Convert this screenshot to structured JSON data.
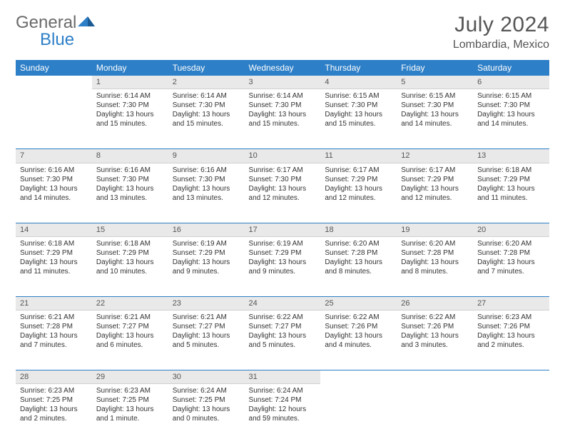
{
  "brand": {
    "part1": "General",
    "part2": "Blue"
  },
  "title": "July 2024",
  "location": "Lombardia, Mexico",
  "colors": {
    "header_bg": "#2d7fc7",
    "daynum_bg": "#e9e9e9",
    "text": "#333333",
    "rule": "#2d7fc7"
  },
  "day_headers": [
    "Sunday",
    "Monday",
    "Tuesday",
    "Wednesday",
    "Thursday",
    "Friday",
    "Saturday"
  ],
  "weeks": [
    [
      null,
      {
        "num": "1",
        "sunrise": "Sunrise: 6:14 AM",
        "sunset": "Sunset: 7:30 PM",
        "day1": "Daylight: 13 hours",
        "day2": "and 15 minutes."
      },
      {
        "num": "2",
        "sunrise": "Sunrise: 6:14 AM",
        "sunset": "Sunset: 7:30 PM",
        "day1": "Daylight: 13 hours",
        "day2": "and 15 minutes."
      },
      {
        "num": "3",
        "sunrise": "Sunrise: 6:14 AM",
        "sunset": "Sunset: 7:30 PM",
        "day1": "Daylight: 13 hours",
        "day2": "and 15 minutes."
      },
      {
        "num": "4",
        "sunrise": "Sunrise: 6:15 AM",
        "sunset": "Sunset: 7:30 PM",
        "day1": "Daylight: 13 hours",
        "day2": "and 15 minutes."
      },
      {
        "num": "5",
        "sunrise": "Sunrise: 6:15 AM",
        "sunset": "Sunset: 7:30 PM",
        "day1": "Daylight: 13 hours",
        "day2": "and 14 minutes."
      },
      {
        "num": "6",
        "sunrise": "Sunrise: 6:15 AM",
        "sunset": "Sunset: 7:30 PM",
        "day1": "Daylight: 13 hours",
        "day2": "and 14 minutes."
      }
    ],
    [
      {
        "num": "7",
        "sunrise": "Sunrise: 6:16 AM",
        "sunset": "Sunset: 7:30 PM",
        "day1": "Daylight: 13 hours",
        "day2": "and 14 minutes."
      },
      {
        "num": "8",
        "sunrise": "Sunrise: 6:16 AM",
        "sunset": "Sunset: 7:30 PM",
        "day1": "Daylight: 13 hours",
        "day2": "and 13 minutes."
      },
      {
        "num": "9",
        "sunrise": "Sunrise: 6:16 AM",
        "sunset": "Sunset: 7:30 PM",
        "day1": "Daylight: 13 hours",
        "day2": "and 13 minutes."
      },
      {
        "num": "10",
        "sunrise": "Sunrise: 6:17 AM",
        "sunset": "Sunset: 7:30 PM",
        "day1": "Daylight: 13 hours",
        "day2": "and 12 minutes."
      },
      {
        "num": "11",
        "sunrise": "Sunrise: 6:17 AM",
        "sunset": "Sunset: 7:29 PM",
        "day1": "Daylight: 13 hours",
        "day2": "and 12 minutes."
      },
      {
        "num": "12",
        "sunrise": "Sunrise: 6:17 AM",
        "sunset": "Sunset: 7:29 PM",
        "day1": "Daylight: 13 hours",
        "day2": "and 12 minutes."
      },
      {
        "num": "13",
        "sunrise": "Sunrise: 6:18 AM",
        "sunset": "Sunset: 7:29 PM",
        "day1": "Daylight: 13 hours",
        "day2": "and 11 minutes."
      }
    ],
    [
      {
        "num": "14",
        "sunrise": "Sunrise: 6:18 AM",
        "sunset": "Sunset: 7:29 PM",
        "day1": "Daylight: 13 hours",
        "day2": "and 11 minutes."
      },
      {
        "num": "15",
        "sunrise": "Sunrise: 6:18 AM",
        "sunset": "Sunset: 7:29 PM",
        "day1": "Daylight: 13 hours",
        "day2": "and 10 minutes."
      },
      {
        "num": "16",
        "sunrise": "Sunrise: 6:19 AM",
        "sunset": "Sunset: 7:29 PM",
        "day1": "Daylight: 13 hours",
        "day2": "and 9 minutes."
      },
      {
        "num": "17",
        "sunrise": "Sunrise: 6:19 AM",
        "sunset": "Sunset: 7:29 PM",
        "day1": "Daylight: 13 hours",
        "day2": "and 9 minutes."
      },
      {
        "num": "18",
        "sunrise": "Sunrise: 6:20 AM",
        "sunset": "Sunset: 7:28 PM",
        "day1": "Daylight: 13 hours",
        "day2": "and 8 minutes."
      },
      {
        "num": "19",
        "sunrise": "Sunrise: 6:20 AM",
        "sunset": "Sunset: 7:28 PM",
        "day1": "Daylight: 13 hours",
        "day2": "and 8 minutes."
      },
      {
        "num": "20",
        "sunrise": "Sunrise: 6:20 AM",
        "sunset": "Sunset: 7:28 PM",
        "day1": "Daylight: 13 hours",
        "day2": "and 7 minutes."
      }
    ],
    [
      {
        "num": "21",
        "sunrise": "Sunrise: 6:21 AM",
        "sunset": "Sunset: 7:28 PM",
        "day1": "Daylight: 13 hours",
        "day2": "and 7 minutes."
      },
      {
        "num": "22",
        "sunrise": "Sunrise: 6:21 AM",
        "sunset": "Sunset: 7:27 PM",
        "day1": "Daylight: 13 hours",
        "day2": "and 6 minutes."
      },
      {
        "num": "23",
        "sunrise": "Sunrise: 6:21 AM",
        "sunset": "Sunset: 7:27 PM",
        "day1": "Daylight: 13 hours",
        "day2": "and 5 minutes."
      },
      {
        "num": "24",
        "sunrise": "Sunrise: 6:22 AM",
        "sunset": "Sunset: 7:27 PM",
        "day1": "Daylight: 13 hours",
        "day2": "and 5 minutes."
      },
      {
        "num": "25",
        "sunrise": "Sunrise: 6:22 AM",
        "sunset": "Sunset: 7:26 PM",
        "day1": "Daylight: 13 hours",
        "day2": "and 4 minutes."
      },
      {
        "num": "26",
        "sunrise": "Sunrise: 6:22 AM",
        "sunset": "Sunset: 7:26 PM",
        "day1": "Daylight: 13 hours",
        "day2": "and 3 minutes."
      },
      {
        "num": "27",
        "sunrise": "Sunrise: 6:23 AM",
        "sunset": "Sunset: 7:26 PM",
        "day1": "Daylight: 13 hours",
        "day2": "and 2 minutes."
      }
    ],
    [
      {
        "num": "28",
        "sunrise": "Sunrise: 6:23 AM",
        "sunset": "Sunset: 7:25 PM",
        "day1": "Daylight: 13 hours",
        "day2": "and 2 minutes."
      },
      {
        "num": "29",
        "sunrise": "Sunrise: 6:23 AM",
        "sunset": "Sunset: 7:25 PM",
        "day1": "Daylight: 13 hours",
        "day2": "and 1 minute."
      },
      {
        "num": "30",
        "sunrise": "Sunrise: 6:24 AM",
        "sunset": "Sunset: 7:25 PM",
        "day1": "Daylight: 13 hours",
        "day2": "and 0 minutes."
      },
      {
        "num": "31",
        "sunrise": "Sunrise: 6:24 AM",
        "sunset": "Sunset: 7:24 PM",
        "day1": "Daylight: 12 hours",
        "day2": "and 59 minutes."
      },
      null,
      null,
      null
    ]
  ]
}
